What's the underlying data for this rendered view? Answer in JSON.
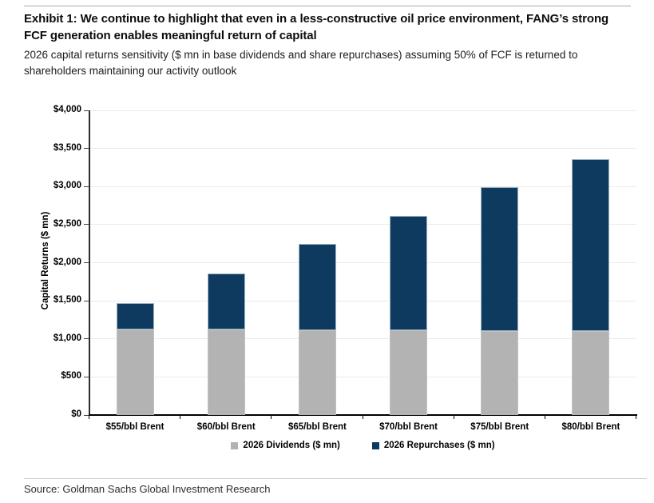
{
  "header": {
    "exhibit_title": "Exhibit 1: We continue to highlight that even in a less-constructive oil price environment, FANG’s strong FCF generation enables meaningful return of capital",
    "subtitle": "2026 capital returns sensitivity ($ mn in base dividends and share repurchases) assuming 50% of FCF is returned to shareholders maintaining our activity outlook"
  },
  "chart_data": {
    "type": "bar",
    "stacked": true,
    "title": "",
    "xlabel": "",
    "ylabel": "Capital Returns ($ mn)",
    "ylim": [
      0,
      4000
    ],
    "grid": true,
    "legend_position": "bottom",
    "categories": [
      "$55/bbl Brent",
      "$60/bbl Brent",
      "$65/bbl Brent",
      "$70/bbl Brent",
      "$75/bbl Brent",
      "$80/bbl Brent"
    ],
    "series": [
      {
        "name": "2026 Dividends ($ mn)",
        "color": "#b3b3b3",
        "values": [
          1125,
          1120,
          1115,
          1110,
          1105,
          1100
        ]
      },
      {
        "name": "2026 Repurchases ($ mn)",
        "color": "#0e3a5f",
        "values": [
          350,
          740,
          1130,
          1500,
          1885,
          2255
        ]
      }
    ],
    "stack_totals": [
      1475,
      1860,
      2245,
      2610,
      2990,
      3355
    ],
    "yticks": [
      {
        "value": 0,
        "label": "$0"
      },
      {
        "value": 500,
        "label": "$500"
      },
      {
        "value": 1000,
        "label": "$1,000"
      },
      {
        "value": 1500,
        "label": "$1,500"
      },
      {
        "value": 2000,
        "label": "$2,000"
      },
      {
        "value": 2500,
        "label": "$2,500"
      },
      {
        "value": 3000,
        "label": "$3,000"
      },
      {
        "value": 3500,
        "label": "$3,500"
      },
      {
        "value": 4000,
        "label": "$4,000"
      }
    ]
  },
  "footer": {
    "source": "Source: Goldman Sachs Global Investment Research"
  }
}
